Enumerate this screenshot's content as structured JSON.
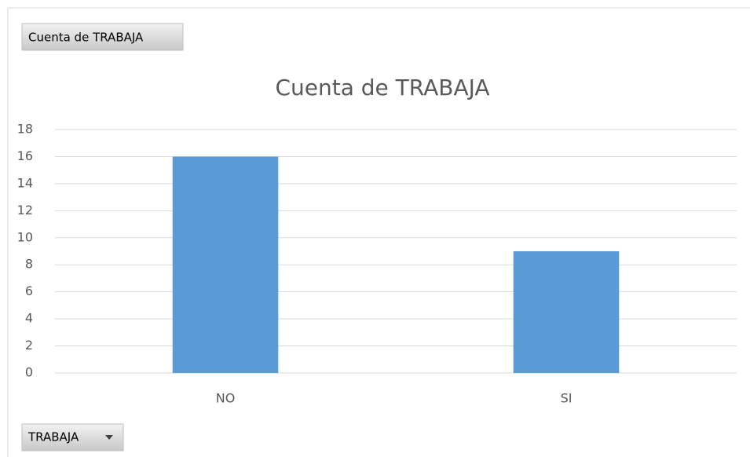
{
  "chart_data": {
    "type": "bar",
    "title": "Cuenta de TRABAJA",
    "value_field_button": "Cuenta de TRABAJA",
    "axis_field_button": "TRABAJA",
    "categories": [
      "NO",
      "SI"
    ],
    "values": [
      16,
      9
    ],
    "color": "#5b9bd5",
    "ylim": [
      0,
      18
    ],
    "yticks": [
      0,
      2,
      4,
      6,
      8,
      10,
      12,
      14,
      16,
      18
    ],
    "grid": true
  }
}
